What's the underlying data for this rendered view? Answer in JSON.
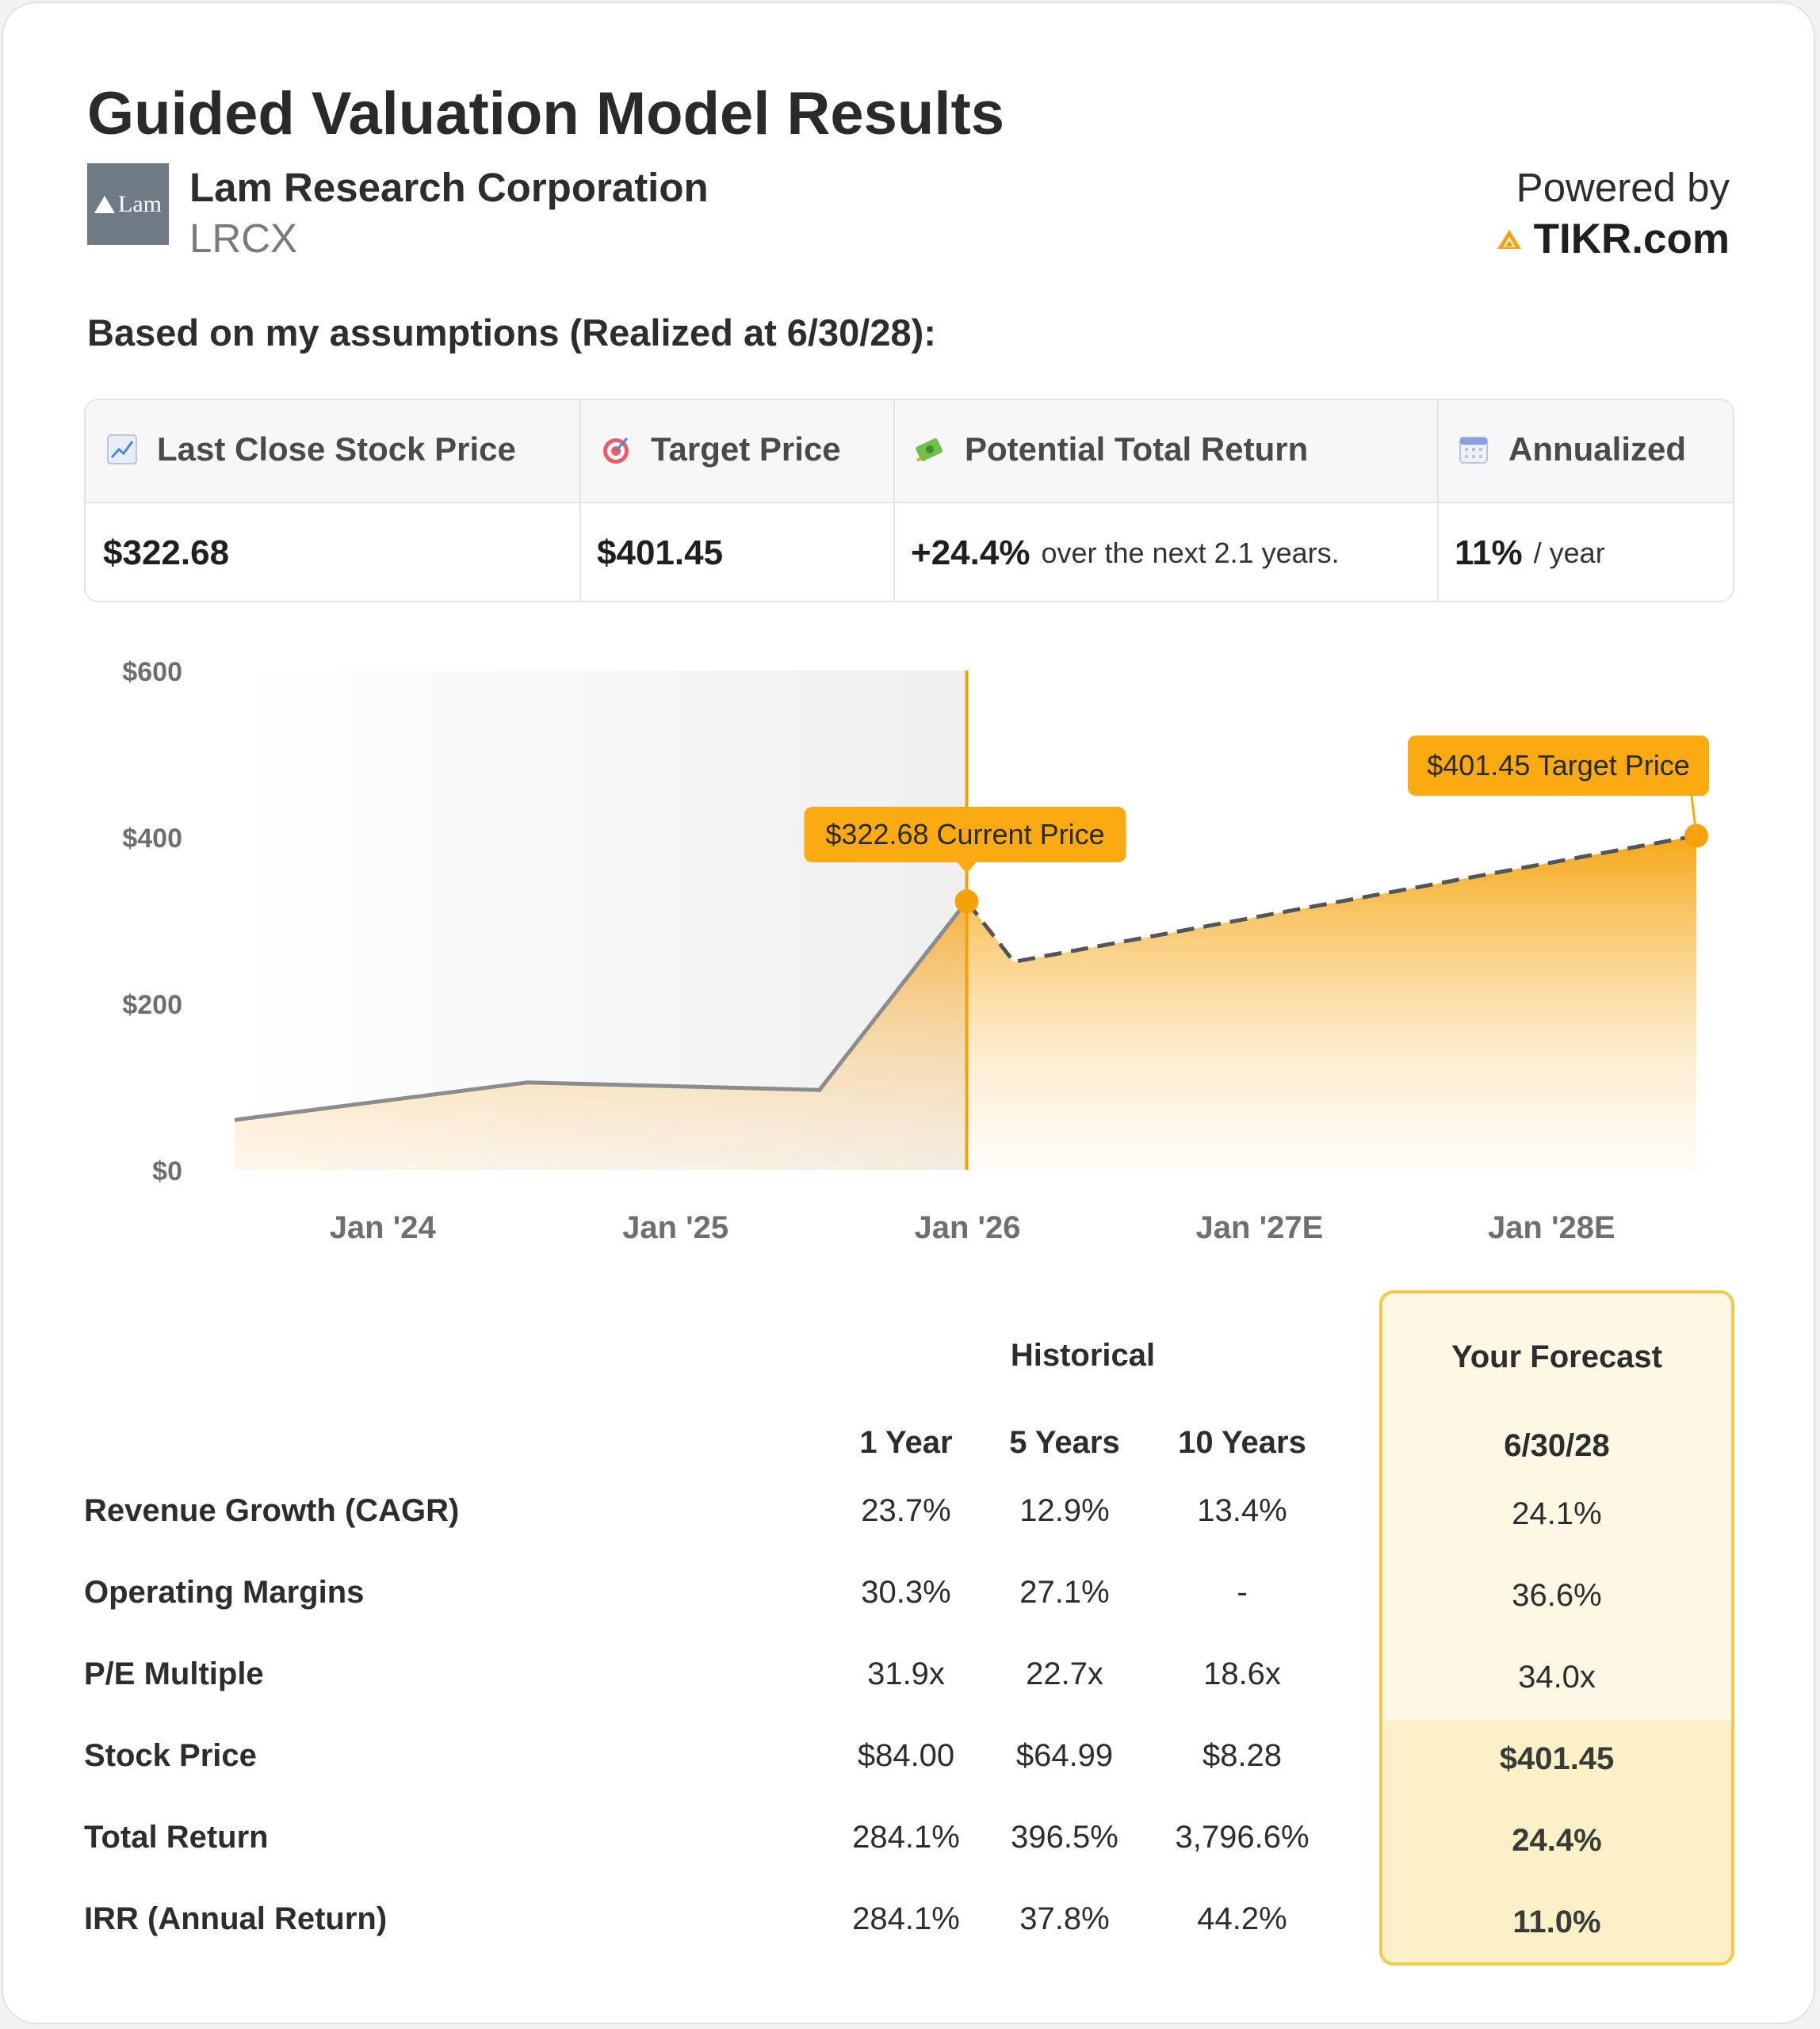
{
  "page": {
    "title": "Guided Valuation Model Results",
    "company_name": "Lam Research Corporation",
    "ticker": "LRCX",
    "logo_text": "Lam",
    "powered_by": "Powered by",
    "brand": "TIKR.com",
    "subtitle": "Based on my assumptions (Realized at 6/30/28):"
  },
  "summary": {
    "headers": [
      {
        "label": "Last Close Stock Price",
        "icon": "chart-up-icon"
      },
      {
        "label": "Target Price",
        "icon": "target-icon"
      },
      {
        "label": "Potential Total Return",
        "icon": "money-icon"
      },
      {
        "label": "Annualized",
        "icon": "calendar-icon"
      }
    ],
    "last_close": "$322.68",
    "target_price": "$401.45",
    "total_return": "+24.4%",
    "total_return_note": "over the next 2.1 years.",
    "annualized": "11%",
    "annualized_unit": "/ year"
  },
  "chart_data": {
    "type": "line",
    "y_ticks": [
      "$0",
      "$200",
      "$400",
      "$600"
    ],
    "ylim": [
      0,
      600
    ],
    "x_ticks": [
      "Jan '24",
      "Jan '25",
      "Jan '26",
      "Jan '27E",
      "Jan '28E"
    ],
    "historical": {
      "x": [
        "2023-06-30",
        "2024-06-30",
        "2025-06-30",
        "2025-12-31"
      ],
      "y": [
        60,
        105,
        96,
        322.68
      ]
    },
    "forecast": {
      "x": [
        "2025-12-31",
        "2026-02-28",
        "2028-06-30"
      ],
      "y": [
        322.68,
        250,
        401.45
      ]
    },
    "current_label": "$322.68 Current Price",
    "target_label": "$401.45 Target Price",
    "colors": {
      "accent": "#f5a20a",
      "history_line": "#8c8c8c",
      "forecast_line": "#555555"
    }
  },
  "table": {
    "group_historical": "Historical",
    "group_forecast": "Your Forecast",
    "columns": [
      "1 Year",
      "5 Years",
      "10 Years"
    ],
    "forecast_date": "6/30/28",
    "rows": [
      {
        "label": "Revenue Growth (CAGR)",
        "values": [
          "23.7%",
          "12.9%",
          "13.4%"
        ],
        "forecast": "24.1%"
      },
      {
        "label": "Operating Margins",
        "values": [
          "30.3%",
          "27.1%",
          "-"
        ],
        "forecast": "36.6%"
      },
      {
        "label": "P/E Multiple",
        "values": [
          "31.9x",
          "22.7x",
          "18.6x"
        ],
        "forecast": "34.0x"
      },
      {
        "label": "Stock Price",
        "values": [
          "$84.00",
          "$64.99",
          "$8.28"
        ],
        "forecast": "$401.45"
      },
      {
        "label": "Total Return",
        "values": [
          "284.1%",
          "396.5%",
          "3,796.6%"
        ],
        "forecast": "24.4%"
      },
      {
        "label": "IRR (Annual Return)",
        "values": [
          "284.1%",
          "37.8%",
          "44.2%"
        ],
        "forecast": "11.0%"
      }
    ]
  }
}
